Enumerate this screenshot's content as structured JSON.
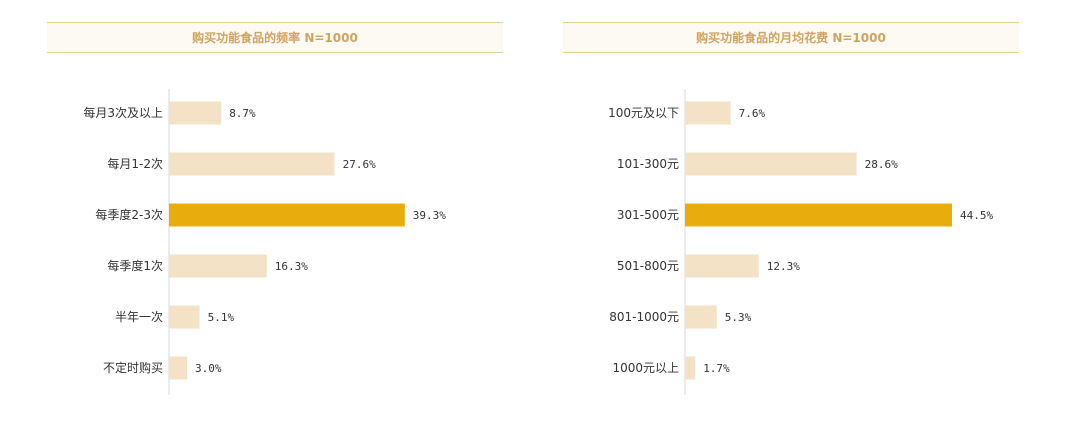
{
  "colors": {
    "bar": "#f4e2c6",
    "highlight": "#e8ac0c",
    "axis": "#d8d8d8",
    "title_text": "#d0a460"
  },
  "chart_data": [
    {
      "type": "bar",
      "orientation": "horizontal",
      "title": "购买功能食品的频率   N=1000",
      "categories": [
        "每月3次及以上",
        "每月1-2次",
        "每季度2-3次",
        "每季度1次",
        "半年一次",
        "不定时购买"
      ],
      "values": [
        8.7,
        27.6,
        39.3,
        16.3,
        5.1,
        3.0
      ],
      "value_labels": [
        "8.7%",
        "27.6%",
        "39.3%",
        "16.3%",
        "5.1%",
        "3.0%"
      ],
      "highlight_index": 2,
      "xlim": [
        0,
        50
      ],
      "grid": false
    },
    {
      "type": "bar",
      "orientation": "horizontal",
      "title": "购买功能食品的月均花费 N=1000",
      "categories": [
        "100元及以下",
        "101-300元",
        "301-500元",
        "501-800元",
        "801-1000元",
        "1000元以上"
      ],
      "values": [
        7.6,
        28.6,
        44.5,
        12.3,
        5.3,
        1.7
      ],
      "value_labels": [
        "7.6%",
        "28.6%",
        "44.5%",
        "12.3%",
        "5.3%",
        "1.7%"
      ],
      "highlight_index": 2,
      "xlim": [
        0,
        50
      ],
      "grid": false
    }
  ]
}
